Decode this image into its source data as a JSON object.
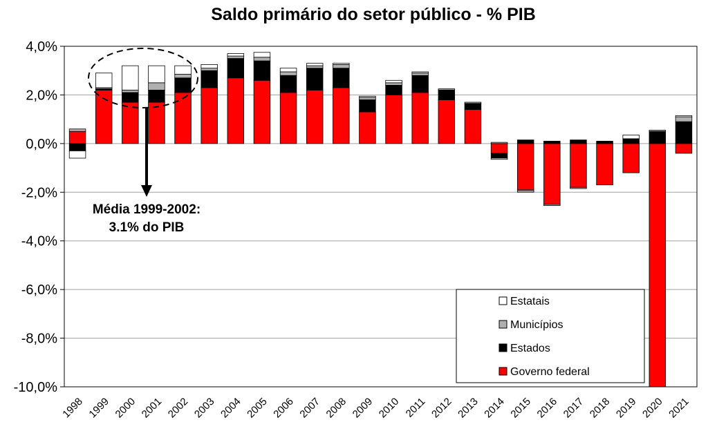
{
  "chart_data": {
    "type": "bar",
    "stacked": true,
    "title": "Saldo primário do setor público - % PIB",
    "ylim": [
      -10,
      4
    ],
    "yticks": [
      "4,0%",
      "2,0%",
      "0,0%",
      "-2,0%",
      "-4,0%",
      "-6,0%",
      "-8,0%",
      "-10,0%"
    ],
    "ytick_values": [
      4,
      2,
      0,
      -2,
      -4,
      -6,
      -8,
      -10
    ],
    "grid": true,
    "categories": [
      "1998",
      "1999",
      "2000",
      "2001",
      "2002",
      "2003",
      "2004",
      "2005",
      "2006",
      "2007",
      "2008",
      "2009",
      "2010",
      "2011",
      "2012",
      "2013",
      "2014",
      "2015",
      "2016",
      "2017",
      "2018",
      "2019",
      "2020",
      "2021"
    ],
    "series": [
      {
        "name": "Governo federal",
        "color": "#ff0000",
        "values": [
          0.5,
          2.2,
          1.7,
          1.7,
          2.1,
          2.3,
          2.7,
          2.6,
          2.1,
          2.2,
          2.3,
          1.3,
          2.0,
          2.1,
          1.8,
          1.4,
          -0.4,
          -1.9,
          -2.5,
          -1.8,
          -1.7,
          -1.2,
          -10.0,
          -0.4
        ]
      },
      {
        "name": "Estados",
        "color": "#000000",
        "values": [
          -0.3,
          0.05,
          0.4,
          0.5,
          0.6,
          0.7,
          0.8,
          0.8,
          0.7,
          0.9,
          0.8,
          0.5,
          0.4,
          0.7,
          0.4,
          0.25,
          -0.2,
          0.15,
          0.1,
          0.15,
          0.1,
          0.2,
          0.5,
          0.9
        ]
      },
      {
        "name": "Municípios",
        "color": "#b0b0b0",
        "values": [
          0.1,
          0.05,
          0.1,
          0.3,
          0.15,
          0.1,
          0.1,
          0.15,
          0.15,
          0.1,
          0.15,
          0.1,
          0.1,
          0.1,
          0.05,
          0.05,
          0.05,
          -0.05,
          -0.05,
          -0.05,
          0.0,
          0.0,
          0.05,
          0.2
        ]
      },
      {
        "name": "Estatais",
        "color": "#ffffff",
        "values": [
          -0.3,
          0.6,
          1.0,
          0.7,
          0.35,
          0.15,
          0.1,
          0.2,
          0.15,
          0.1,
          0.05,
          0.05,
          0.1,
          0.05,
          0.0,
          0.0,
          -0.05,
          -0.05,
          0.0,
          0.0,
          0.0,
          0.15,
          0.0,
          0.05
        ]
      }
    ],
    "legend": {
      "position": "bottom-right",
      "items": [
        "Estatais",
        "Municípios",
        "Estados",
        "Governo federal"
      ]
    },
    "annotation": {
      "line1": "Média 1999-2002:",
      "line2": "3.1% do PIB"
    }
  }
}
